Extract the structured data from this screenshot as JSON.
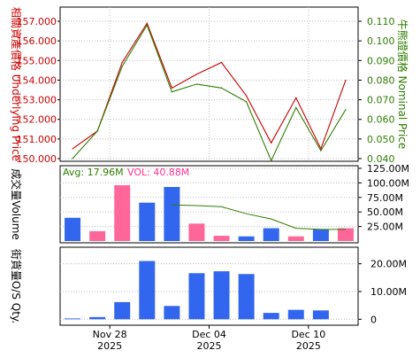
{
  "colors": {
    "underlying": "#cc0000",
    "nominal": "#2e7d00",
    "bar_blue": "#3366ee",
    "bar_pink": "#ff6699",
    "avg_text": "#2e7d00",
    "vol_text": "#ff3399",
    "grid": "#bbbbbb",
    "frame": "#000000"
  },
  "chart_data": [
    {
      "type": "line",
      "panel": "price",
      "ylabel_left": "相關資產價格 Underlying Price",
      "ylabel_right": "牛熊證價格 Nominal Price",
      "left_axis": {
        "ylim": [
          150.0,
          157.0
        ],
        "ticks": [
          "150.000",
          "151.000",
          "152.000",
          "153.000",
          "154.000",
          "155.000",
          "156.000",
          "157.000"
        ]
      },
      "right_axis": {
        "ylim": [
          0.04,
          0.11
        ],
        "ticks": [
          "0.040",
          "0.050",
          "0.060",
          "0.070",
          "0.080",
          "0.090",
          "0.100",
          "0.110"
        ]
      },
      "series": [
        {
          "axis": "left",
          "color": "#cc0000",
          "values": [
            150.5,
            151.4,
            154.9,
            156.9,
            153.6,
            154.3,
            154.9,
            153.2,
            150.8,
            153.1,
            150.5,
            154.0
          ]
        },
        {
          "axis": "right",
          "color": "#2e7d00",
          "values": [
            0.04,
            0.054,
            0.087,
            0.108,
            0.074,
            0.078,
            0.076,
            0.069,
            0.039,
            0.066,
            0.044,
            0.065
          ]
        }
      ],
      "grid": true
    },
    {
      "type": "bar",
      "panel": "volume",
      "ylabel_left": "成交量Volume",
      "annotations": [
        {
          "key": "avg",
          "text": "Avg: 17.96M",
          "color": "#2e7d00"
        },
        {
          "key": "vol",
          "text": "VOL: 40.88M",
          "color": "#ff3399"
        }
      ],
      "ylim": [
        0,
        125.0
      ],
      "ticks": [
        "25.00M",
        "50.00M",
        "75.00M",
        "100.00M",
        "125.00M"
      ],
      "values": [
        40,
        17,
        96,
        66,
        93,
        30,
        9,
        8,
        22,
        8,
        20,
        22
      ],
      "bar_colors": [
        "blue",
        "pink",
        "pink",
        "blue",
        "blue",
        "pink",
        "pink",
        "blue",
        "blue",
        "pink",
        "blue",
        "pink"
      ],
      "average_line": [
        null,
        null,
        null,
        null,
        62,
        61,
        59,
        47,
        38,
        22,
        20,
        20
      ],
      "grid": true
    },
    {
      "type": "bar",
      "panel": "os_qty",
      "ylabel_left": "街貨量O/S Qty.",
      "ylim": [
        -1.5,
        25.0
      ],
      "ticks": [
        "0",
        "10.00M",
        "20.00M"
      ],
      "values": [
        0.3,
        0.8,
        6.2,
        21.0,
        4.8,
        16.6,
        17.3,
        16.3,
        2.3,
        3.4,
        3.2
      ],
      "bar_colors": [
        "blue",
        "blue",
        "blue",
        "blue",
        "blue",
        "blue",
        "blue",
        "blue",
        "blue",
        "blue",
        "blue"
      ],
      "grid": true
    }
  ],
  "x_labels": [
    {
      "index": 1.5,
      "line1": "Nov 28",
      "line2": "2025"
    },
    {
      "index": 5.5,
      "line1": "Dec 04",
      "line2": "2025"
    },
    {
      "index": 9.5,
      "line1": "Dec 10",
      "line2": "2025"
    }
  ]
}
